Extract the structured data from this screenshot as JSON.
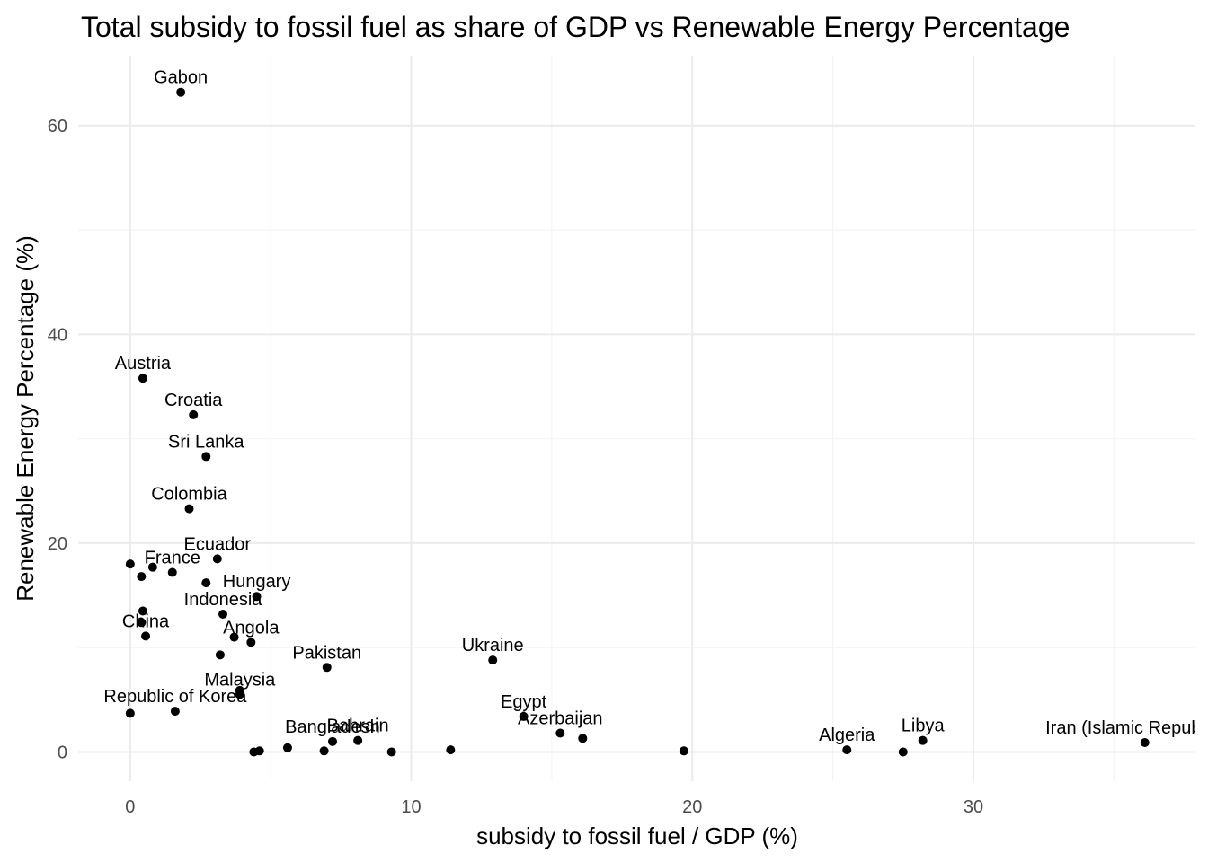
{
  "chart_data": {
    "type": "scatter",
    "title": "Total subsidy to fossil fuel as share of GDP vs Renewable Energy Percentage",
    "xlabel": "subsidy to fossil fuel / GDP (%)",
    "ylabel": "Renewable Energy Percentage (%)",
    "xlim": [
      -1.85,
      37.9
    ],
    "ylim": [
      -2.8,
      66.7
    ],
    "x_ticks": [
      0,
      10,
      20,
      30
    ],
    "y_ticks": [
      0,
      20,
      40,
      60
    ],
    "x_tick_labels": [
      "0",
      "10",
      "20",
      "30"
    ],
    "y_tick_labels": [
      "0",
      "20",
      "40",
      "60"
    ],
    "grid": true,
    "points": [
      {
        "label": "Gabon",
        "x": 1.8,
        "y": 63.2
      },
      {
        "label": "Austria",
        "x": 0.45,
        "y": 35.8
      },
      {
        "label": "Croatia",
        "x": 2.25,
        "y": 32.3
      },
      {
        "label": "Sri Lanka",
        "x": 2.7,
        "y": 28.3
      },
      {
        "label": "Colombia",
        "x": 2.1,
        "y": 23.3
      },
      {
        "label": "Ecuador",
        "x": 3.1,
        "y": 18.5
      },
      {
        "label": "",
        "x": 0.0,
        "y": 18.0
      },
      {
        "label": "",
        "x": 0.8,
        "y": 17.7
      },
      {
        "label": "France",
        "x": 1.5,
        "y": 17.2
      },
      {
        "label": "",
        "x": 0.4,
        "y": 16.8
      },
      {
        "label": "",
        "x": 2.7,
        "y": 16.2
      },
      {
        "label": "Hungary",
        "x": 4.5,
        "y": 14.9
      },
      {
        "label": "",
        "x": 0.45,
        "y": 13.5
      },
      {
        "label": "Indonesia",
        "x": 3.3,
        "y": 13.2
      },
      {
        "label": "",
        "x": 0.4,
        "y": 12.4
      },
      {
        "label": "China",
        "x": 0.55,
        "y": 11.1
      },
      {
        "label": "",
        "x": 3.7,
        "y": 11.0
      },
      {
        "label": "Angola",
        "x": 4.3,
        "y": 10.5
      },
      {
        "label": "",
        "x": 3.2,
        "y": 9.3
      },
      {
        "label": "Ukraine",
        "x": 12.9,
        "y": 8.8
      },
      {
        "label": "Pakistan",
        "x": 7.0,
        "y": 8.1
      },
      {
        "label": "",
        "x": 3.9,
        "y": 5.9
      },
      {
        "label": "Malaysia",
        "x": 3.9,
        "y": 5.5
      },
      {
        "label": "Republic of Korea",
        "x": 1.6,
        "y": 3.9
      },
      {
        "label": "",
        "x": 0.0,
        "y": 3.7
      },
      {
        "label": "Egypt",
        "x": 14.0,
        "y": 3.4
      },
      {
        "label": "Azerbaijan",
        "x": 15.3,
        "y": 1.8
      },
      {
        "label": "",
        "x": 16.1,
        "y": 1.3
      },
      {
        "label": "Bangladesh",
        "x": 7.2,
        "y": 1.0
      },
      {
        "label": "Bahrain",
        "x": 8.1,
        "y": 1.1
      },
      {
        "label": "",
        "x": 5.6,
        "y": 0.4
      },
      {
        "label": "",
        "x": 4.6,
        "y": 0.1
      },
      {
        "label": "",
        "x": 4.4,
        "y": 0.0
      },
      {
        "label": "",
        "x": 6.9,
        "y": 0.1
      },
      {
        "label": "",
        "x": 9.3,
        "y": 0.0
      },
      {
        "label": "",
        "x": 11.4,
        "y": 0.2
      },
      {
        "label": "",
        "x": 19.7,
        "y": 0.1
      },
      {
        "label": "Algeria",
        "x": 25.5,
        "y": 0.2
      },
      {
        "label": "",
        "x": 27.5,
        "y": 0.0
      },
      {
        "label": "Libya",
        "x": 28.2,
        "y": 1.1
      },
      {
        "label": "Iran (Islamic Republic of)",
        "x": 36.1,
        "y": 0.9
      }
    ]
  }
}
